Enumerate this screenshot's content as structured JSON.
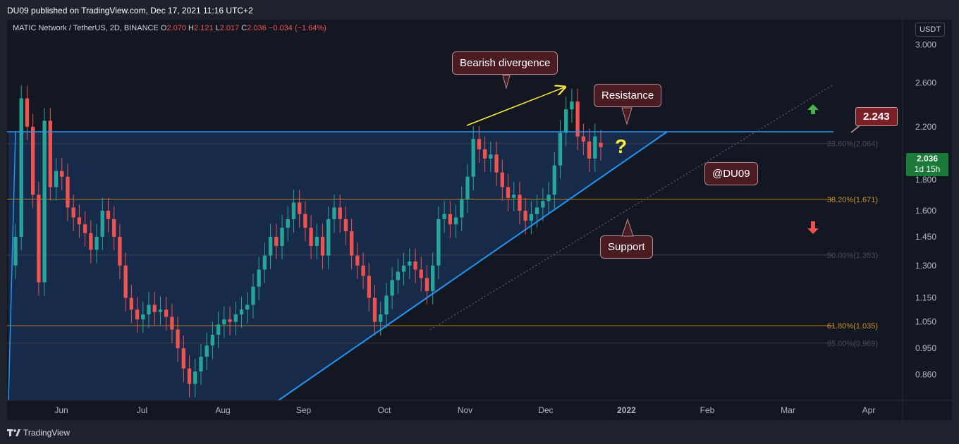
{
  "header": {
    "published": "DU09 published on TradingView.com, Dec 17, 2021 11:16 UTC+2"
  },
  "symbol": {
    "name": "MATIC Network / TetherUS, 2D, BINANCE",
    "open_label": "O",
    "open": "2.070",
    "high_label": "H",
    "high": "2.121",
    "low_label": "L",
    "low": "2.017",
    "close_label": "C",
    "close": "2.036",
    "change": "−0.034 (−1.64%)"
  },
  "currency": "USDT",
  "current_price": {
    "value": "2.036",
    "countdown": "1d 15h"
  },
  "callouts": {
    "bearish": "Bearish divergence",
    "resistance": "Resistance",
    "support": "Support",
    "watermark": "@DU09",
    "price_tag": "2.243",
    "question": "?"
  },
  "footer": {
    "brand": "TradingView"
  },
  "colors": {
    "up": "#26a69a",
    "down": "#ef5350",
    "line": "#2196f3",
    "fib": "#b8860b"
  },
  "chart_data": {
    "type": "candlestick",
    "title": "MATIC Network / TetherUS, 2D, BINANCE",
    "y_scale": "log",
    "ylim": [
      0.78,
      3.3
    ],
    "y_ticks": [
      "3.000",
      "2.600",
      "2.200",
      "1.800",
      "1.600",
      "1.450",
      "1.300",
      "1.150",
      "1.050",
      "0.950",
      "0.860"
    ],
    "x_ticks": [
      "Jun",
      "Jul",
      "Aug",
      "Sep",
      "Oct",
      "Nov",
      "Dec",
      "2022",
      "Feb",
      "Mar",
      "Apr"
    ],
    "fib_levels": [
      {
        "label": "23.60%(2.064)",
        "value": 2.064
      },
      {
        "label": "38.20%(1.671)",
        "value": 1.671
      },
      {
        "label": "50.00%(1.353)",
        "value": 1.353
      },
      {
        "label": "61.80%(1.035)",
        "value": 1.035
      },
      {
        "label": "65.00%(0.969)",
        "value": 0.969
      }
    ],
    "resistance": 2.243,
    "series_up_color": "#26a69a",
    "series_down_color": "#ef5350",
    "closes": [
      1.45,
      2.45,
      2.2,
      1.7,
      1.22,
      2.25,
      1.75,
      1.86,
      1.82,
      1.62,
      1.56,
      1.52,
      1.47,
      1.38,
      1.45,
      1.6,
      1.55,
      1.45,
      1.3,
      1.15,
      1.1,
      1.06,
      1.08,
      1.12,
      1.09,
      1.1,
      1.07,
      1.02,
      0.95,
      0.88,
      0.83,
      0.87,
      0.92,
      0.96,
      1.0,
      1.04,
      1.06,
      1.05,
      1.08,
      1.1,
      1.12,
      1.2,
      1.28,
      1.35,
      1.45,
      1.4,
      1.5,
      1.55,
      1.65,
      1.58,
      1.5,
      1.4,
      1.45,
      1.35,
      1.55,
      1.62,
      1.55,
      1.48,
      1.35,
      1.3,
      1.25,
      1.15,
      1.05,
      1.08,
      1.16,
      1.23,
      1.27,
      1.3,
      1.32,
      1.28,
      1.24,
      1.18,
      1.3,
      1.55,
      1.58,
      1.52,
      1.56,
      1.67,
      1.82,
      2.1,
      2.02,
      1.95,
      1.98,
      1.85,
      1.75,
      1.68,
      1.7,
      1.6,
      1.54,
      1.58,
      1.62,
      1.66,
      1.7,
      1.9,
      2.15,
      2.35,
      2.42,
      2.12,
      2.08,
      1.95,
      2.12,
      2.036
    ],
    "opens": [
      1.3,
      1.45,
      2.45,
      2.2,
      1.7,
      1.22,
      2.25,
      1.75,
      1.86,
      1.82,
      1.62,
      1.56,
      1.52,
      1.47,
      1.38,
      1.45,
      1.6,
      1.55,
      1.45,
      1.3,
      1.15,
      1.1,
      1.06,
      1.08,
      1.12,
      1.09,
      1.1,
      1.07,
      1.02,
      0.95,
      0.88,
      0.83,
      0.87,
      0.92,
      0.96,
      1.0,
      1.04,
      1.06,
      1.05,
      1.08,
      1.1,
      1.12,
      1.2,
      1.28,
      1.35,
      1.45,
      1.4,
      1.5,
      1.55,
      1.65,
      1.58,
      1.5,
      1.4,
      1.45,
      1.35,
      1.55,
      1.62,
      1.55,
      1.48,
      1.35,
      1.3,
      1.25,
      1.15,
      1.05,
      1.08,
      1.16,
      1.23,
      1.27,
      1.3,
      1.32,
      1.28,
      1.24,
      1.18,
      1.3,
      1.55,
      1.58,
      1.52,
      1.56,
      1.67,
      1.82,
      2.1,
      2.02,
      1.95,
      1.98,
      1.85,
      1.75,
      1.68,
      1.7,
      1.6,
      1.54,
      1.58,
      1.62,
      1.66,
      1.7,
      1.9,
      2.15,
      2.35,
      2.42,
      2.12,
      2.08,
      1.95,
      2.07
    ]
  }
}
